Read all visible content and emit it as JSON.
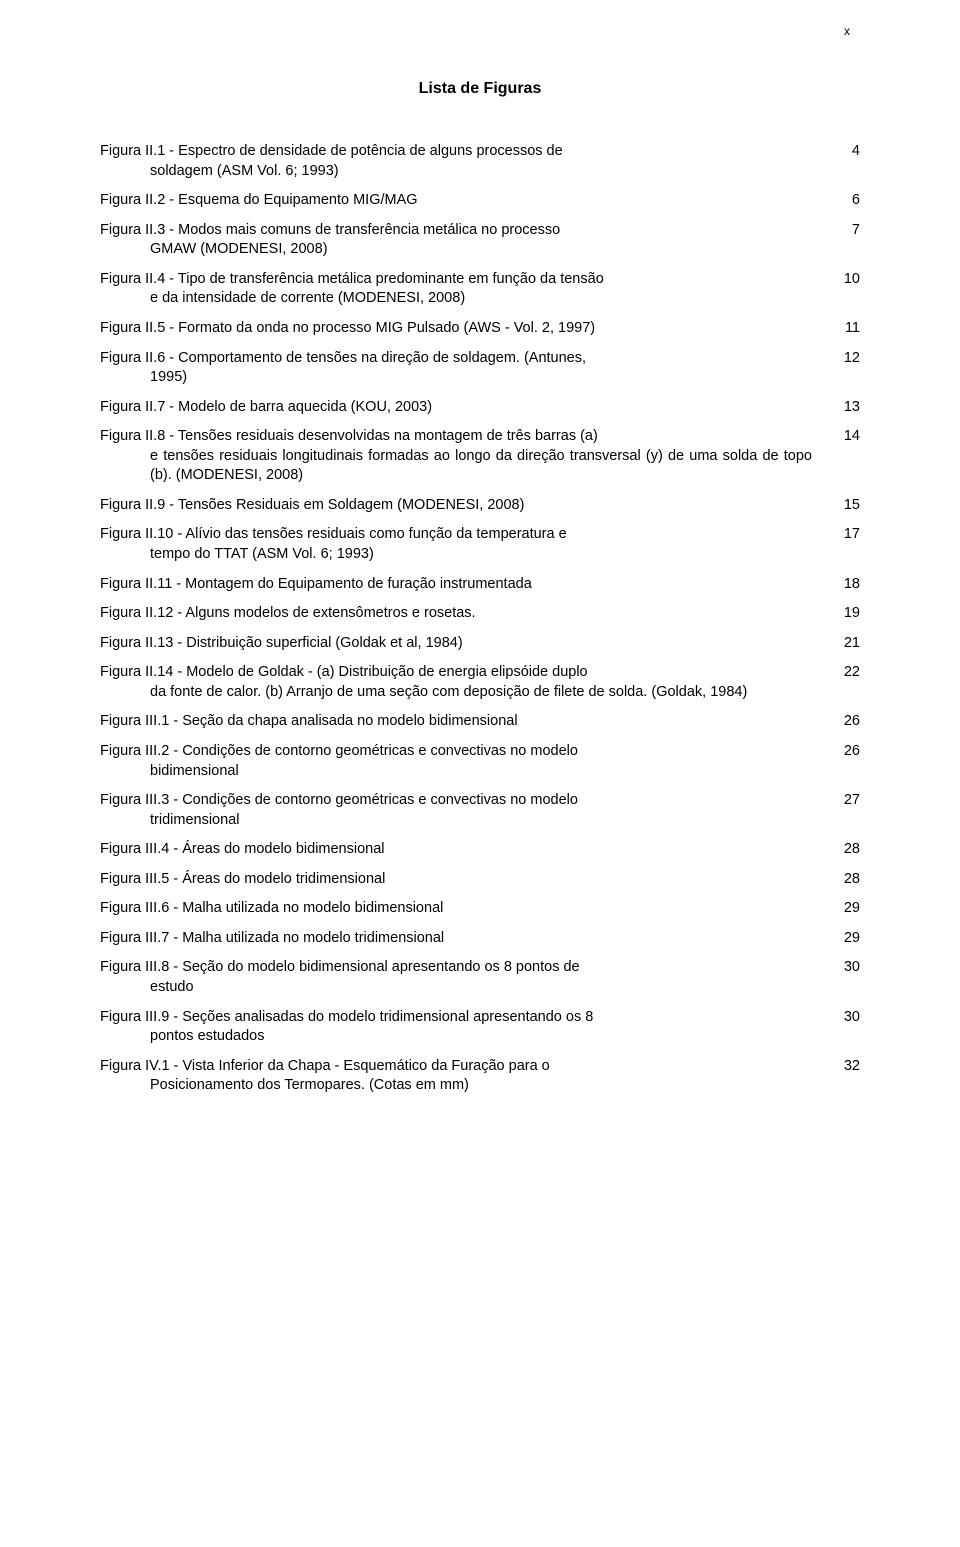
{
  "page_marker": "x",
  "title": "Lista de Figuras",
  "entries": [
    {
      "line1": "Figura II.1 - Espectro de densidade de potência de alguns processos de",
      "cont": "soldagem (ASM Vol. 6; 1993)",
      "page": "4"
    },
    {
      "line1": "Figura II.2 - Esquema do Equipamento MIG/MAG",
      "cont": "",
      "page": "6"
    },
    {
      "line1": "Figura II.3 - Modos mais comuns de transferência metálica no processo",
      "cont": "GMAW (MODENESI, 2008)",
      "page": "7"
    },
    {
      "line1": "Figura II.4 - Tipo de transferência metálica predominante em função da tensão",
      "cont": "e da intensidade de corrente (MODENESI, 2008)",
      "page": "10"
    },
    {
      "line1": "Figura II.5 - Formato da onda no processo MIG Pulsado (AWS - Vol. 2, 1997)",
      "cont": "",
      "page": "11"
    },
    {
      "line1": "Figura II.6 - Comportamento de tensões na direção de soldagem. (Antunes,",
      "cont": "1995)",
      "page": "12"
    },
    {
      "line1": "Figura II.7 - Modelo de barra aquecida (KOU, 2003)",
      "cont": "",
      "page": "13"
    },
    {
      "line1": "Figura II.8 - Tensões residuais desenvolvidas na montagem de três barras (a)",
      "cont": "e tensões residuais longitudinais formadas ao longo da direção transversal (y) de uma solda de topo (b). (MODENESI, 2008)",
      "page": "14"
    },
    {
      "line1": "Figura II.9 - Tensões Residuais em Soldagem (MODENESI, 2008)",
      "cont": "",
      "page": "15"
    },
    {
      "line1": "Figura II.10 - Alívio das tensões residuais como função da temperatura e",
      "cont": "tempo do TTAT (ASM Vol. 6; 1993)",
      "page": "17"
    },
    {
      "line1": "Figura II.11 - Montagem do Equipamento de furação instrumentada",
      "cont": "",
      "page": "18"
    },
    {
      "line1": "Figura II.12 - Alguns modelos de extensômetros e rosetas.",
      "cont": "",
      "page": "19"
    },
    {
      "line1": "Figura II.13 - Distribuição superficial (Goldak et al, 1984)",
      "cont": "",
      "page": "21"
    },
    {
      "line1": "Figura II.14 - Modelo de Goldak - (a) Distribuição de energia elipsóide duplo",
      "cont": "da fonte de calor. (b) Arranjo de uma seção com deposição de filete de solda. (Goldak, 1984)",
      "page": "22"
    },
    {
      "line1": "Figura III.1 - Seção da chapa analisada no modelo bidimensional",
      "cont": "",
      "page": "26"
    },
    {
      "line1": "Figura III.2 - Condições de contorno geométricas e convectivas no modelo",
      "cont": "bidimensional",
      "page": "26"
    },
    {
      "line1": "Figura III.3 - Condições de contorno geométricas e convectivas no modelo",
      "cont": "tridimensional",
      "page": "27"
    },
    {
      "line1": "Figura III.4 - Áreas do modelo bidimensional",
      "cont": "",
      "page": "28"
    },
    {
      "line1": "Figura III.5 - Áreas do modelo tridimensional",
      "cont": "",
      "page": "28"
    },
    {
      "line1": "Figura III.6 - Malha utilizada no modelo bidimensional",
      "cont": "",
      "page": "29"
    },
    {
      "line1": "Figura III.7 - Malha utilizada no modelo tridimensional",
      "cont": "",
      "page": "29"
    },
    {
      "line1": "Figura III.8 - Seção do modelo bidimensional apresentando os 8 pontos de",
      "cont": "estudo",
      "page": "30"
    },
    {
      "line1": "Figura III.9 - Seções analisadas do modelo tridimensional apresentando os 8",
      "cont": "pontos estudados",
      "page": "30"
    },
    {
      "line1": "Figura IV.1 - Vista Inferior da Chapa - Esquemático da Furação para o",
      "cont": "Posicionamento dos Termopares. (Cotas em mm)",
      "page": "32"
    }
  ]
}
